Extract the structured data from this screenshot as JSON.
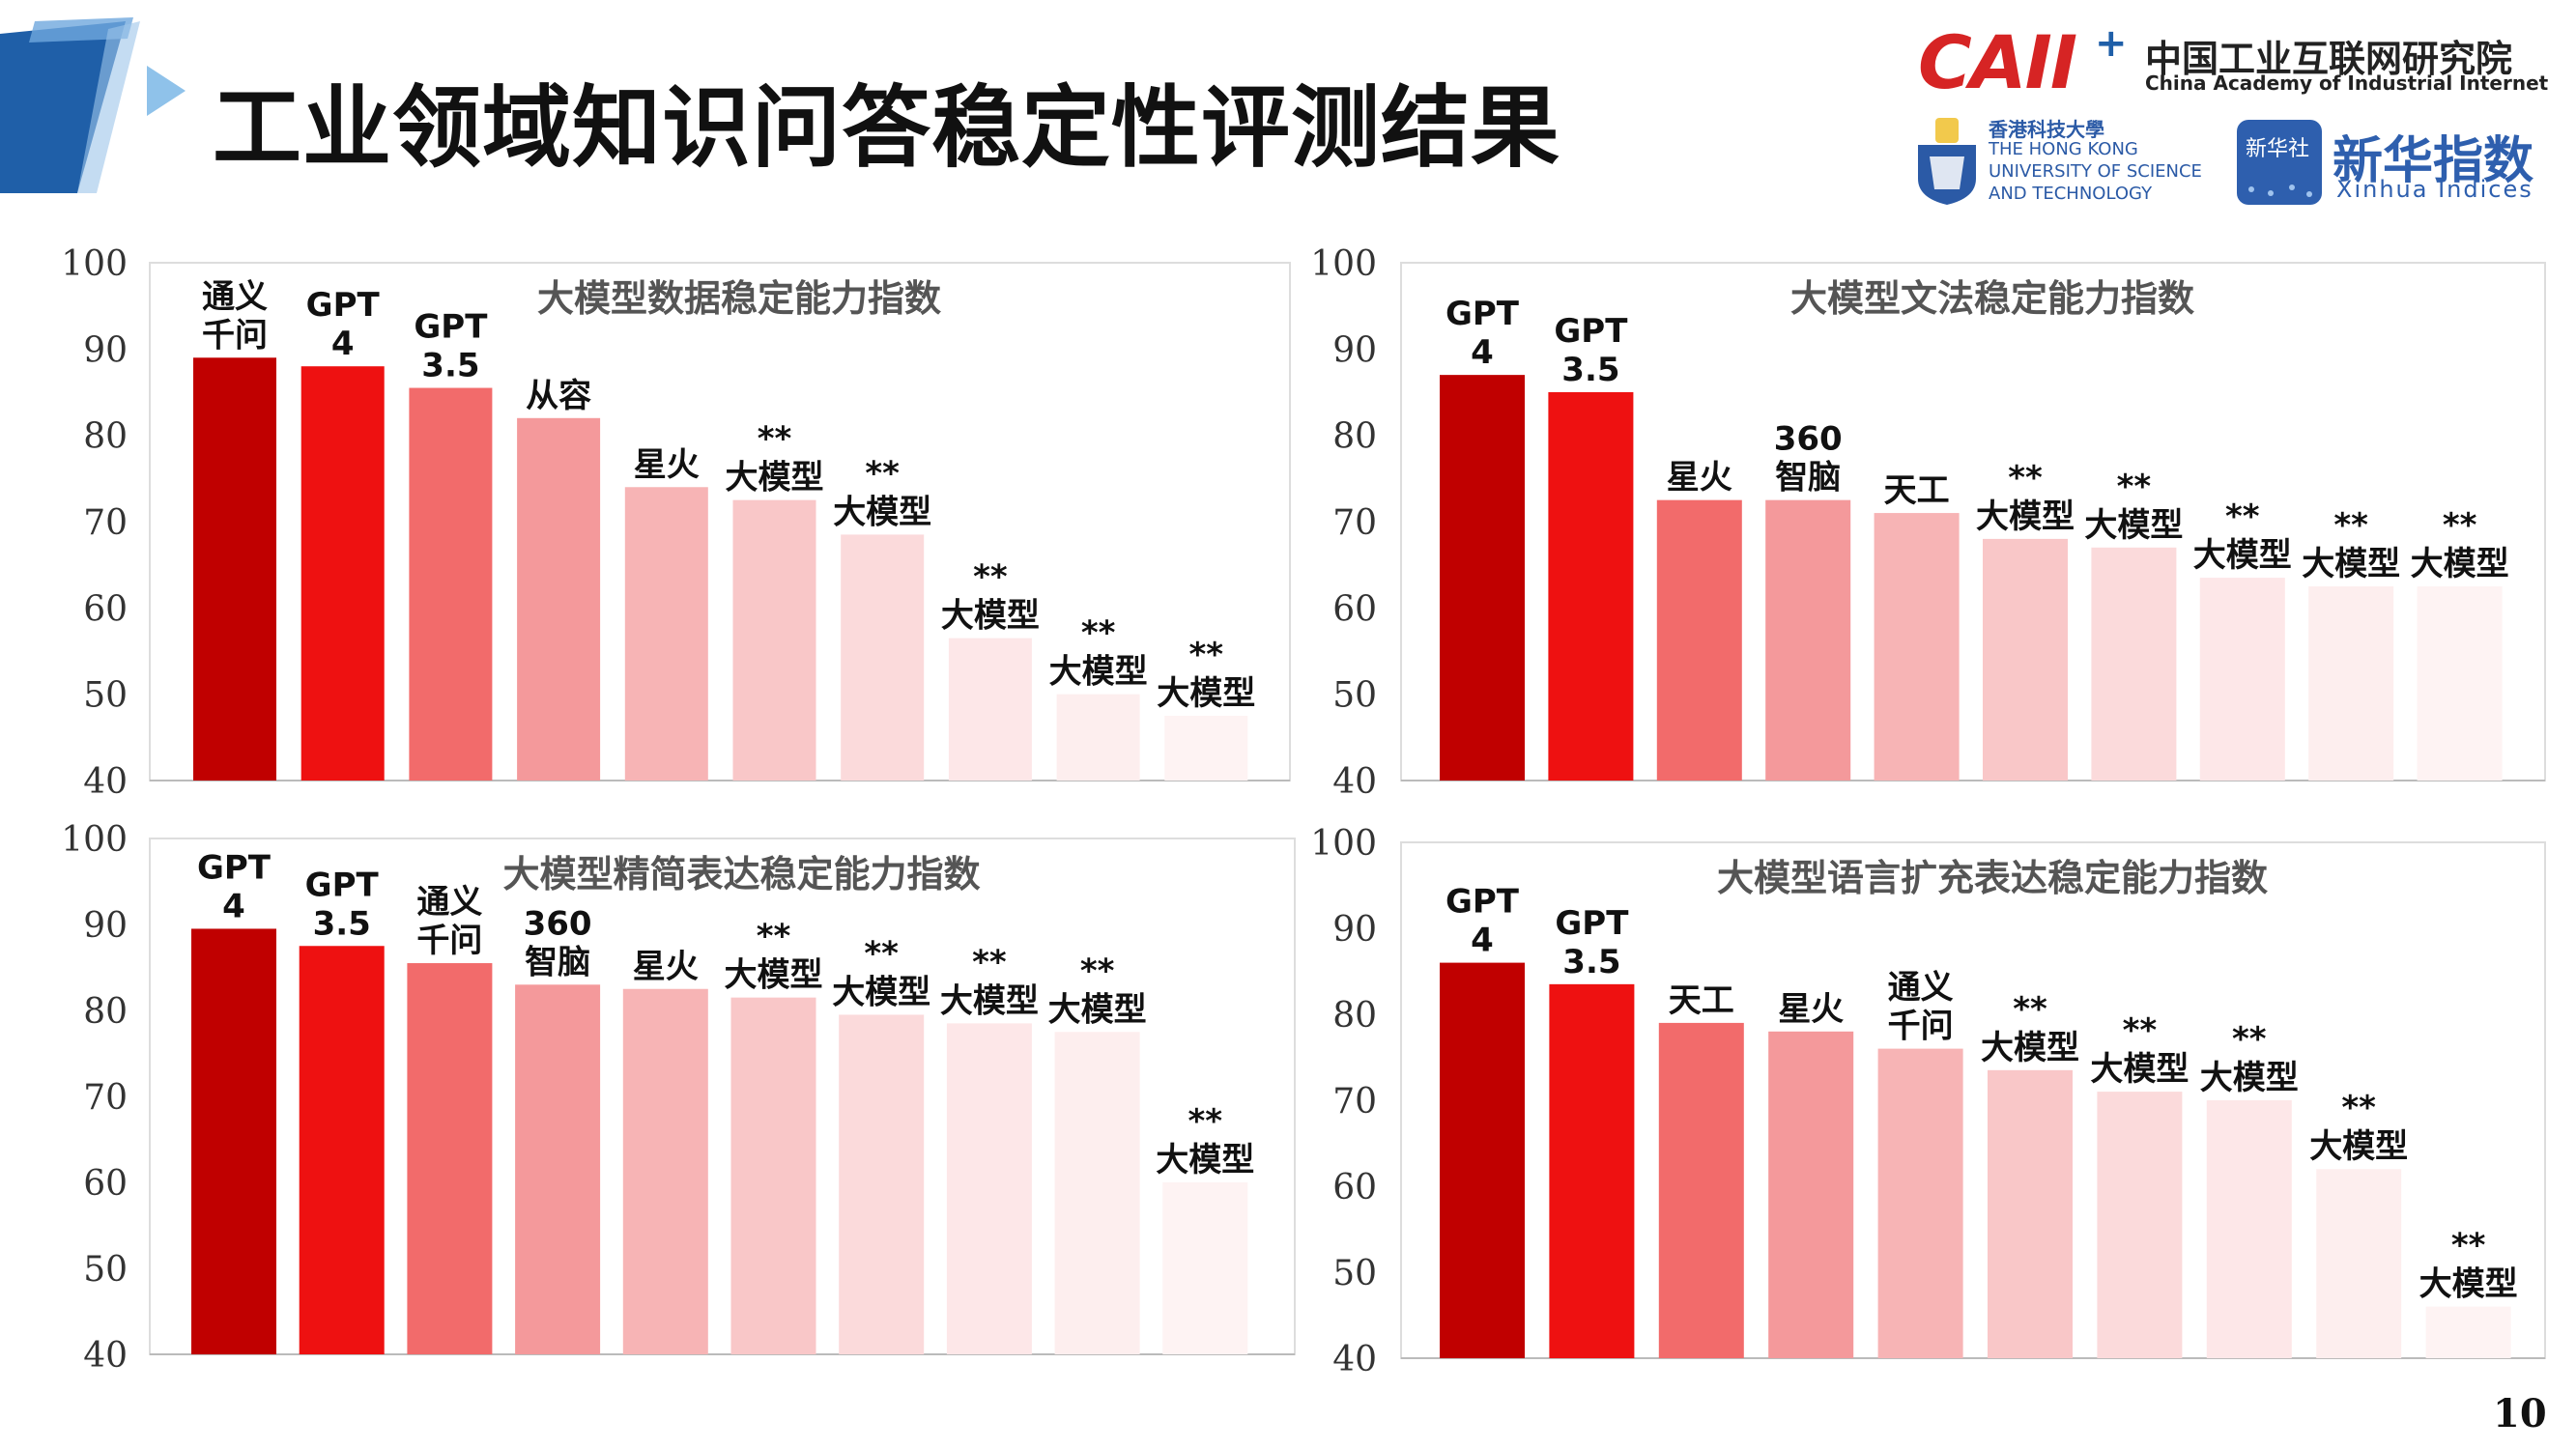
{
  "slide": {
    "title": "工业领域知识问答稳定性评测结果",
    "page_number": "10"
  },
  "logos": {
    "caii": {
      "mark": "CAII",
      "plus": "+",
      "name_cn": "中国工业互联网研究院",
      "name_en": "China Academy of Industrial Internet"
    },
    "hkust": {
      "name_cn": "香港科技大學",
      "line1": "THE HONG KONG",
      "line2": "UNIVERSITY OF SCIENCE",
      "line3": "AND TECHNOLOGY"
    },
    "xinhua": {
      "badge": "新华社",
      "name_cn": "新华指数",
      "name_en": "Xinhua Indices"
    }
  },
  "colors": {
    "bars": [
      "#c00000",
      "#ee1111",
      "#f26b6b",
      "#f4999b",
      "#f7b4b5",
      "#f9c7c8",
      "#fbdadb",
      "#fde7e8",
      "#fdeeee",
      "#fef3f3"
    ],
    "axis_text": "#333333",
    "frame": "#dddddd",
    "header_blue": "#1f5fa8"
  },
  "chart_data": [
    {
      "type": "bar",
      "title": "大模型数据稳定能力指数",
      "ylim": [
        40,
        100
      ],
      "yticks": [
        40,
        50,
        60,
        70,
        80,
        90,
        100
      ],
      "grid": false,
      "categories": [
        [
          "通义",
          "千问"
        ],
        [
          "GPT",
          "4"
        ],
        [
          "GPT",
          "3.5"
        ],
        [
          "从容"
        ],
        [
          "星火"
        ],
        [
          "**",
          "大模型"
        ],
        [
          "**",
          "大模型"
        ],
        [
          "**",
          "大模型"
        ],
        [
          "**",
          "大模型"
        ],
        [
          "**",
          "大模型"
        ]
      ],
      "values": [
        89,
        88,
        85.5,
        82,
        74,
        72.5,
        68.5,
        56.5,
        50,
        47.5
      ]
    },
    {
      "type": "bar",
      "title": "大模型文法稳定能力指数",
      "ylim": [
        40,
        100
      ],
      "yticks": [
        40,
        50,
        60,
        70,
        80,
        90,
        100
      ],
      "grid": false,
      "categories": [
        [
          "GPT",
          "4"
        ],
        [
          "GPT",
          "3.5"
        ],
        [
          "星火"
        ],
        [
          "360",
          "智脑"
        ],
        [
          "天工"
        ],
        [
          "**",
          "大模型"
        ],
        [
          "**",
          "大模型"
        ],
        [
          "**",
          "大模型"
        ],
        [
          "**",
          "大模型"
        ],
        [
          "**",
          "大模型"
        ]
      ],
      "values": [
        87,
        85,
        72.5,
        72.5,
        71,
        68,
        67,
        63.5,
        62.5,
        62.5
      ]
    },
    {
      "type": "bar",
      "title": "大模型精简表达稳定能力指数",
      "ylim": [
        40,
        100
      ],
      "yticks": [
        40,
        50,
        60,
        70,
        80,
        90,
        100
      ],
      "grid": false,
      "categories": [
        [
          "GPT",
          "4"
        ],
        [
          "GPT",
          "3.5"
        ],
        [
          "通义",
          "千问"
        ],
        [
          "360",
          "智脑"
        ],
        [
          "星火"
        ],
        [
          "**",
          "大模型"
        ],
        [
          "**",
          "大模型"
        ],
        [
          "**",
          "大模型"
        ],
        [
          "**",
          "大模型"
        ],
        [
          "**",
          "大模型"
        ]
      ],
      "values": [
        89.5,
        87.5,
        85.5,
        83,
        82.5,
        81.5,
        79.5,
        78.5,
        77.5,
        60
      ]
    },
    {
      "type": "bar",
      "title": "大模型语言扩充表达稳定能力指数",
      "ylim": [
        40,
        100
      ],
      "yticks": [
        40,
        50,
        60,
        70,
        80,
        90,
        100
      ],
      "grid": false,
      "categories": [
        [
          "GPT",
          "4"
        ],
        [
          "GPT",
          "3.5"
        ],
        [
          "天工"
        ],
        [
          "星火"
        ],
        [
          "通义",
          "千问"
        ],
        [
          "**",
          "大模型"
        ],
        [
          "**",
          "大模型"
        ],
        [
          "**",
          "大模型"
        ],
        [
          "**",
          "大模型"
        ],
        [
          "**",
          "大模型"
        ]
      ],
      "values": [
        86,
        83.5,
        79,
        78,
        76,
        73.5,
        71,
        70,
        62,
        46
      ]
    }
  ]
}
